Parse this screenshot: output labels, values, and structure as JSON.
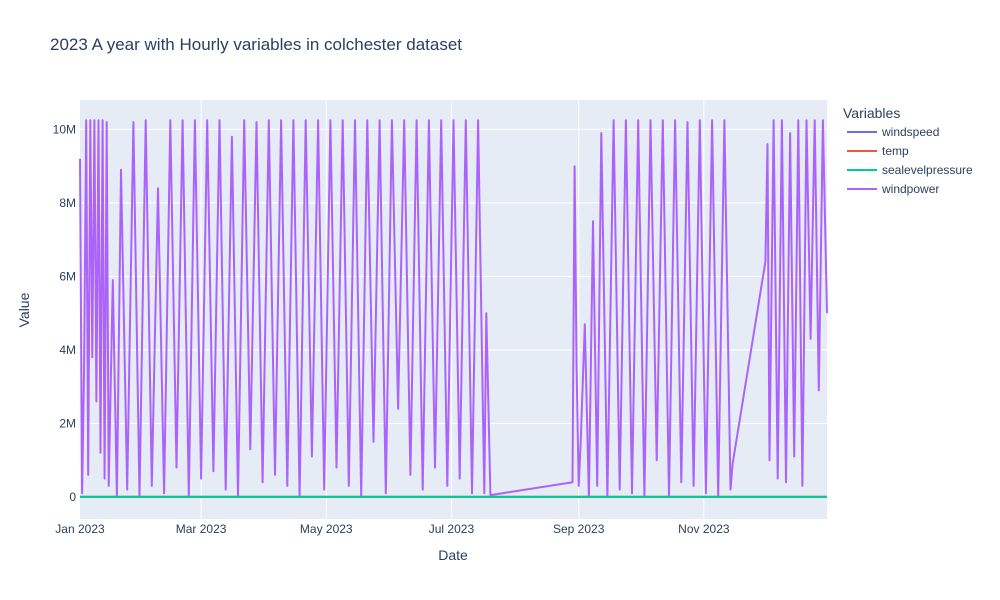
{
  "chart_data": {
    "type": "line",
    "title": "2023 A year with Hourly variables in colchester dataset",
    "xlabel": "Date",
    "ylabel": "Value",
    "legend_title": "Variables",
    "legend_position": "right",
    "grid": true,
    "xlim": [
      "2023-01-01",
      "2023-12-31"
    ],
    "ylim": [
      -600000,
      10800000
    ],
    "x_ticks": [
      {
        "date": "2023-01-01",
        "label": "Jan 2023"
      },
      {
        "date": "2023-03-01",
        "label": "Mar 2023"
      },
      {
        "date": "2023-05-01",
        "label": "May 2023"
      },
      {
        "date": "2023-07-01",
        "label": "Jul 2023"
      },
      {
        "date": "2023-09-01",
        "label": "Sep 2023"
      },
      {
        "date": "2023-11-01",
        "label": "Nov 2023"
      }
    ],
    "y_ticks": [
      {
        "value": 0,
        "label": "0"
      },
      {
        "value": 2000000,
        "label": "2M"
      },
      {
        "value": 4000000,
        "label": "4M"
      },
      {
        "value": 6000000,
        "label": "6M"
      },
      {
        "value": 8000000,
        "label": "8M"
      },
      {
        "value": 10000000,
        "label": "10M"
      }
    ],
    "series": [
      {
        "name": "windspeed",
        "color": "#636efa",
        "x": [
          "2023-01-01",
          "2023-07-20",
          "2023-08-30",
          "2023-12-31"
        ],
        "y": [
          15,
          12,
          14,
          18
        ]
      },
      {
        "name": "temp",
        "color": "#EF553B",
        "x": [
          "2023-01-01",
          "2023-07-20",
          "2023-08-30",
          "2023-12-31"
        ],
        "y": [
          5,
          18,
          17,
          8
        ]
      },
      {
        "name": "sealevelpressure",
        "color": "#00cc96",
        "x": [
          "2023-01-01",
          "2023-07-20",
          "2023-08-30",
          "2023-12-31"
        ],
        "y": [
          1013,
          1016,
          1015,
          1012
        ]
      },
      {
        "name": "windpower",
        "color": "#ab63fa",
        "x": [
          "2023-01-01",
          "2023-01-02",
          "2023-01-03",
          "2023-01-04",
          "2023-01-05",
          "2023-01-06",
          "2023-01-07",
          "2023-01-08",
          "2023-01-09",
          "2023-01-10",
          "2023-01-11",
          "2023-01-12",
          "2023-01-13",
          "2023-01-14",
          "2023-01-15",
          "2023-01-17",
          "2023-01-19",
          "2023-01-21",
          "2023-01-24",
          "2023-01-27",
          "2023-01-30",
          "2023-02-02",
          "2023-02-05",
          "2023-02-08",
          "2023-02-11",
          "2023-02-14",
          "2023-02-17",
          "2023-02-20",
          "2023-02-23",
          "2023-02-26",
          "2023-03-01",
          "2023-03-04",
          "2023-03-07",
          "2023-03-10",
          "2023-03-13",
          "2023-03-16",
          "2023-03-19",
          "2023-03-22",
          "2023-03-25",
          "2023-03-28",
          "2023-03-31",
          "2023-04-03",
          "2023-04-06",
          "2023-04-09",
          "2023-04-12",
          "2023-04-15",
          "2023-04-18",
          "2023-04-21",
          "2023-04-24",
          "2023-04-27",
          "2023-04-30",
          "2023-05-03",
          "2023-05-06",
          "2023-05-09",
          "2023-05-12",
          "2023-05-15",
          "2023-05-18",
          "2023-05-21",
          "2023-05-24",
          "2023-05-27",
          "2023-05-30",
          "2023-06-02",
          "2023-06-05",
          "2023-06-08",
          "2023-06-11",
          "2023-06-14",
          "2023-06-17",
          "2023-06-20",
          "2023-06-23",
          "2023-06-26",
          "2023-06-29",
          "2023-07-02",
          "2023-07-05",
          "2023-07-08",
          "2023-07-11",
          "2023-07-14",
          "2023-07-17",
          "2023-07-18",
          "2023-07-19",
          "2023-07-20",
          "2023-08-29",
          "2023-08-30",
          "2023-08-31",
          "2023-09-01",
          "2023-09-02",
          "2023-09-04",
          "2023-09-06",
          "2023-09-08",
          "2023-09-10",
          "2023-09-12",
          "2023-09-15",
          "2023-09-18",
          "2023-09-21",
          "2023-09-24",
          "2023-09-27",
          "2023-09-30",
          "2023-10-03",
          "2023-10-06",
          "2023-10-09",
          "2023-10-12",
          "2023-10-15",
          "2023-10-18",
          "2023-10-21",
          "2023-10-24",
          "2023-10-27",
          "2023-10-30",
          "2023-11-02",
          "2023-11-05",
          "2023-11-08",
          "2023-11-11",
          "2023-11-14",
          "2023-11-15",
          "2023-12-01",
          "2023-12-02",
          "2023-12-03",
          "2023-12-05",
          "2023-12-07",
          "2023-12-09",
          "2023-12-11",
          "2023-12-13",
          "2023-12-15",
          "2023-12-17",
          "2023-12-19",
          "2023-12-21",
          "2023-12-23",
          "2023-12-25",
          "2023-12-27",
          "2023-12-29",
          "2023-12-31"
        ],
        "y": [
          9200000,
          100000,
          3500000,
          10250000,
          600000,
          10250000,
          3800000,
          10250000,
          2600000,
          10250000,
          1200000,
          10250000,
          500000,
          10200000,
          300000,
          5900000,
          0,
          8900000,
          200000,
          10200000,
          0,
          10250000,
          300000,
          8400000,
          100000,
          10250000,
          800000,
          10250000,
          0,
          10250000,
          500000,
          10250000,
          700000,
          10250000,
          200000,
          9800000,
          0,
          10250000,
          1300000,
          10200000,
          400000,
          10250000,
          600000,
          10250000,
          300000,
          10250000,
          0,
          10250000,
          1100000,
          10250000,
          200000,
          10250000,
          800000,
          10250000,
          300000,
          10250000,
          0,
          10250000,
          1500000,
          10250000,
          100000,
          10250000,
          2400000,
          10250000,
          600000,
          10250000,
          200000,
          10250000,
          800000,
          10250000,
          300000,
          10250000,
          500000,
          10250000,
          100000,
          10250000,
          100000,
          5000000,
          2500000,
          50000,
          400000,
          9000000,
          3500000,
          300000,
          1500000,
          4700000,
          0,
          7500000,
          300000,
          9900000,
          0,
          10250000,
          200000,
          10250000,
          100000,
          10250000,
          0,
          10250000,
          1000000,
          10250000,
          0,
          10250000,
          400000,
          10200000,
          300000,
          10250000,
          100000,
          10250000,
          0,
          10250000,
          200000,
          900000,
          6400000,
          9600000,
          1000000,
          10250000,
          500000,
          10250000,
          400000,
          9900000,
          1100000,
          10250000,
          300000,
          10250000,
          4300000,
          10250000,
          2900000,
          10250000,
          5000000
        ]
      }
    ]
  }
}
